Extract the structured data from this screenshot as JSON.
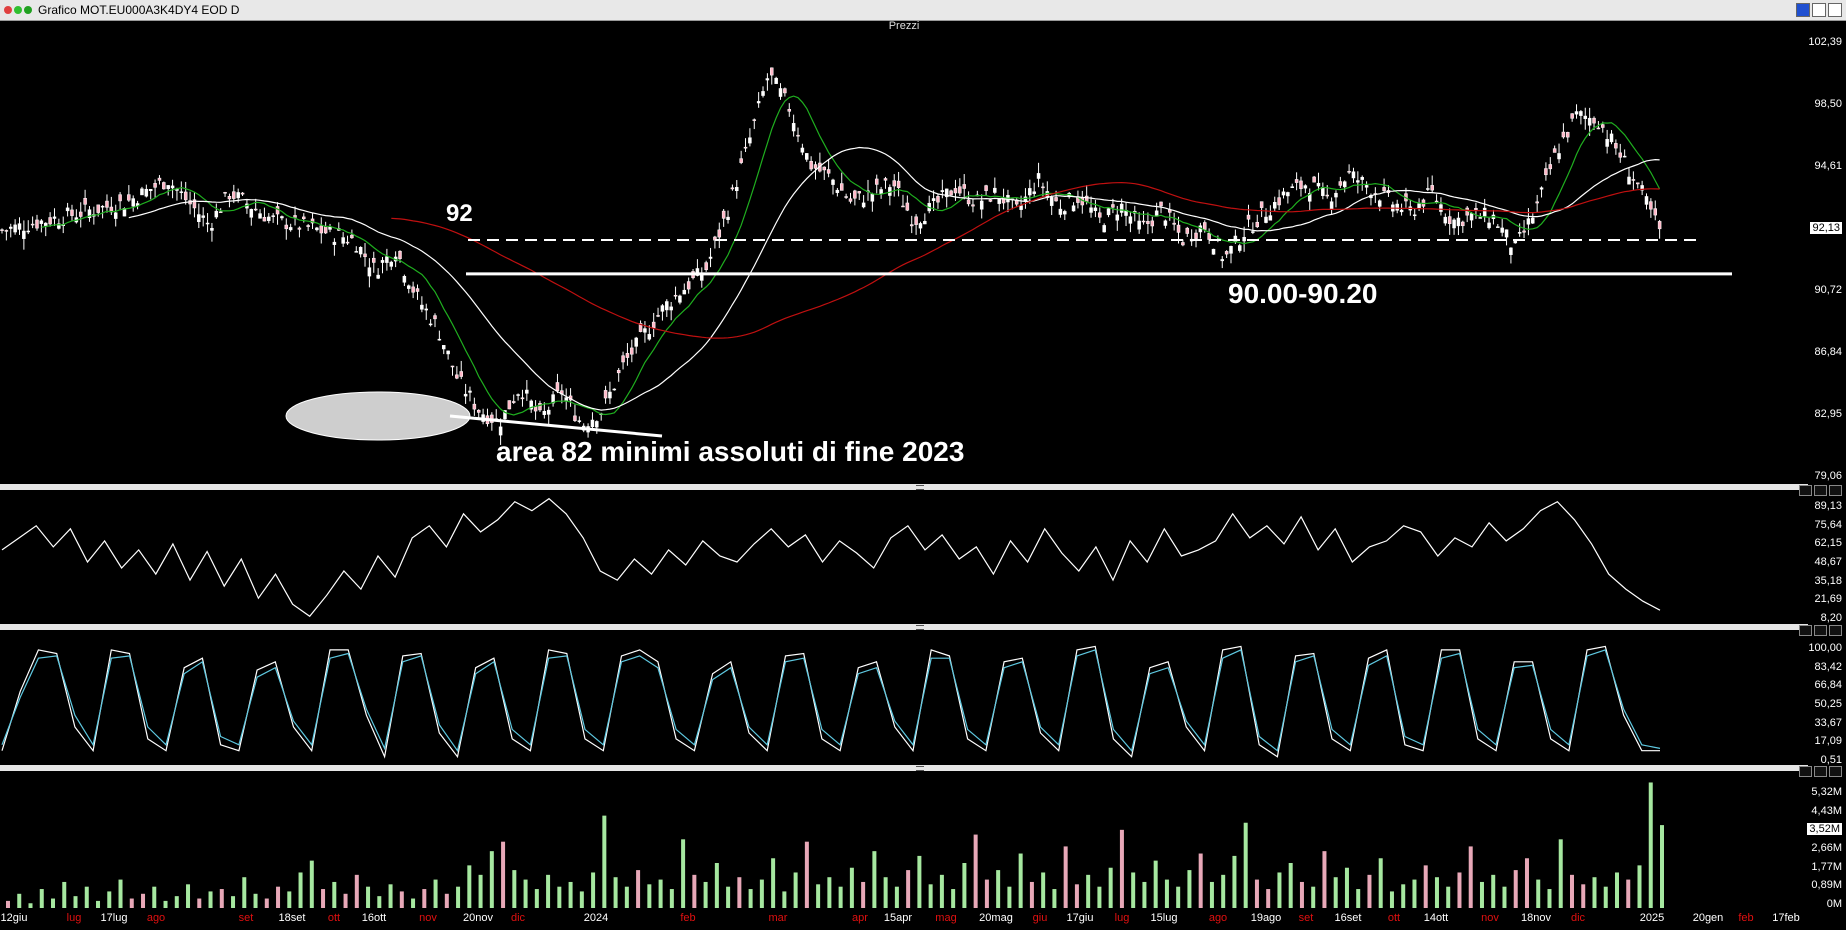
{
  "window": {
    "title": "Grafico MOT.EU000A3K4DY4 EOD D"
  },
  "panels": {
    "price_title": "Prezzi",
    "separator_glyph": "..."
  },
  "annotations": {
    "level_92": "92",
    "support_zone": "90.00-90.20",
    "lows_note": "area 82 minimi assoluti di fine 2023"
  },
  "colors": {
    "bull_volume": "#a6e8a0",
    "bear_volume": "#e8a8b8",
    "ma_fast": "#1fae1f",
    "ma_mid": "#ffffff",
    "ma_slow": "#c01010",
    "stoch_k": "#ffffff",
    "stoch_d": "#5ec8e0",
    "month_label": "#e01010",
    "date_label": "#ffffff"
  },
  "x_axis": [
    {
      "text": "12giu",
      "red": false
    },
    {
      "text": "lug",
      "red": true
    },
    {
      "text": "17lug",
      "red": false
    },
    {
      "text": "ago",
      "red": true
    },
    {
      "text": "set",
      "red": true
    },
    {
      "text": "18set",
      "red": false
    },
    {
      "text": "ott",
      "red": true
    },
    {
      "text": "16ott",
      "red": false
    },
    {
      "text": "nov",
      "red": true
    },
    {
      "text": "20nov",
      "red": false
    },
    {
      "text": "dic",
      "red": true
    },
    {
      "text": "2024",
      "red": false
    },
    {
      "text": "feb",
      "red": true
    },
    {
      "text": "mar",
      "red": true
    },
    {
      "text": "apr",
      "red": true
    },
    {
      "text": "15apr",
      "red": false
    },
    {
      "text": "mag",
      "red": true
    },
    {
      "text": "20mag",
      "red": false
    },
    {
      "text": "giu",
      "red": true
    },
    {
      "text": "17giu",
      "red": false
    },
    {
      "text": "lug",
      "red": true
    },
    {
      "text": "15lug",
      "red": false
    },
    {
      "text": "ago",
      "red": true
    },
    {
      "text": "19ago",
      "red": false
    },
    {
      "text": "set",
      "red": true
    },
    {
      "text": "16set",
      "red": false
    },
    {
      "text": "ott",
      "red": true
    },
    {
      "text": "14ott",
      "red": false
    },
    {
      "text": "nov",
      "red": true
    },
    {
      "text": "18nov",
      "red": false
    },
    {
      "text": "dic",
      "red": true
    },
    {
      "text": "2025",
      "red": false
    },
    {
      "text": "20gen",
      "red": false
    },
    {
      "text": "feb",
      "red": true
    },
    {
      "text": "17feb",
      "red": false
    }
  ],
  "chart_data": [
    {
      "type": "candlestick",
      "title": "Prezzi",
      "y_ticks": [
        "102,39",
        "98,50",
        "94,61",
        "92,13",
        "90,72",
        "86,84",
        "82,95",
        "79,06"
      ],
      "ylim": [
        79.06,
        102.39
      ],
      "last_price_label": "92,13",
      "horizontal_levels": [
        {
          "value": 92,
          "style": "dashed",
          "label": "92"
        },
        {
          "value": 90.2,
          "style": "solid",
          "label": "90.00-90.20"
        }
      ],
      "price_path": [
        [
          0,
          92.5
        ],
        [
          6,
          94.0
        ],
        [
          8,
          95.2
        ],
        [
          10,
          92.8
        ],
        [
          11,
          94.5
        ],
        [
          13,
          93.1
        ],
        [
          15,
          92.6
        ],
        [
          17,
          92.0
        ],
        [
          18,
          90.4
        ],
        [
          19,
          91.5
        ],
        [
          20,
          89.0
        ],
        [
          21,
          87.4
        ],
        [
          22,
          84.6
        ],
        [
          23,
          83.0
        ],
        [
          24,
          82.3
        ],
        [
          25,
          84.2
        ],
        [
          26,
          82.5
        ],
        [
          27,
          84.0
        ],
        [
          28,
          82.2
        ],
        [
          29,
          83.0
        ],
        [
          30,
          85.4
        ],
        [
          31,
          87.0
        ],
        [
          32,
          88.5
        ],
        [
          33,
          89.5
        ],
        [
          34,
          90.5
        ],
        [
          35,
          93.5
        ],
        [
          36,
          97.0
        ],
        [
          37,
          100.8
        ],
        [
          38,
          99.0
        ],
        [
          39,
          96.0
        ],
        [
          40,
          95.3
        ],
        [
          41,
          94.0
        ],
        [
          42,
          94.5
        ],
        [
          43,
          95.0
        ],
        [
          44,
          93.0
        ],
        [
          45,
          93.8
        ],
        [
          46,
          94.8
        ],
        [
          47,
          94.0
        ],
        [
          48,
          94.5
        ],
        [
          49,
          93.5
        ],
        [
          50,
          95.2
        ],
        [
          51,
          93.8
        ],
        [
          52,
          94.3
        ],
        [
          53,
          93.0
        ],
        [
          54,
          93.8
        ],
        [
          55,
          92.6
        ],
        [
          56,
          93.6
        ],
        [
          57,
          92.0
        ],
        [
          58,
          92.8
        ],
        [
          59,
          91.0
        ],
        [
          60,
          92.5
        ],
        [
          61,
          93.5
        ],
        [
          62,
          94.5
        ],
        [
          63,
          95.0
        ],
        [
          64,
          94.2
        ],
        [
          65,
          95.5
        ],
        [
          66,
          94.8
        ],
        [
          67,
          94.0
        ],
        [
          68,
          93.5
        ],
        [
          69,
          94.5
        ],
        [
          70,
          93.0
        ],
        [
          71,
          93.3
        ],
        [
          72,
          93.2
        ],
        [
          73,
          91.5
        ],
        [
          74,
          93.5
        ],
        [
          75,
          96.6
        ],
        [
          76,
          98.6
        ],
        [
          77,
          98.4
        ],
        [
          78,
          96.7
        ],
        [
          79,
          94.8
        ],
        [
          80,
          92.5
        ]
      ]
    },
    {
      "type": "line",
      "title": "",
      "y_ticks": [
        "89,13",
        "75,64",
        "62,15",
        "48,67",
        "35,18",
        "21,69",
        "8,20"
      ],
      "ylim": [
        8.2,
        89.13
      ],
      "series": [
        {
          "name": "",
          "values": [
            56,
            64,
            72,
            58,
            70,
            48,
            62,
            44,
            56,
            40,
            60,
            36,
            55,
            32,
            50,
            24,
            40,
            20,
            12,
            26,
            42,
            30,
            52,
            38,
            64,
            72,
            58,
            80,
            68,
            76,
            88,
            82,
            90,
            80,
            64,
            42,
            36,
            50,
            40,
            56,
            46,
            62,
            52,
            48,
            60,
            70,
            58,
            66,
            48,
            62,
            54,
            44,
            64,
            72,
            56,
            66,
            50,
            58,
            40,
            62,
            48,
            70,
            54,
            42,
            58,
            36,
            62,
            48,
            70,
            52,
            56,
            62,
            80,
            64,
            72,
            60,
            78,
            56,
            70,
            48,
            58,
            62,
            72,
            68,
            52,
            64,
            58,
            74,
            62,
            70,
            82,
            88,
            76,
            60,
            40,
            30,
            22,
            16
          ]
        }
      ]
    },
    {
      "type": "line",
      "title": "",
      "y_ticks": [
        "100,00",
        "83,42",
        "66,84",
        "50,25",
        "33,67",
        "17,09",
        "0,51"
      ],
      "ylim": [
        0.51,
        100
      ],
      "series": [
        {
          "name": "",
          "values": [
            10,
            60,
            95,
            92,
            30,
            10,
            95,
            92,
            20,
            10,
            80,
            88,
            15,
            10,
            78,
            85,
            30,
            10,
            95,
            95,
            40,
            5,
            90,
            92,
            25,
            5,
            80,
            88,
            20,
            10,
            95,
            92,
            20,
            10,
            90,
            95,
            85,
            20,
            10,
            75,
            85,
            25,
            10,
            90,
            92,
            20,
            10,
            80,
            85,
            30,
            10,
            95,
            90,
            20,
            10,
            85,
            88,
            25,
            10,
            95,
            98,
            20,
            5,
            80,
            85,
            30,
            10,
            95,
            98,
            15,
            5,
            90,
            92,
            20,
            10,
            88,
            95,
            15,
            10,
            95,
            95,
            20,
            10,
            85,
            85,
            20,
            10,
            95,
            98,
            40,
            10,
            10
          ]
        },
        {
          "name": "",
          "values": [
            15,
            55,
            88,
            90,
            40,
            15,
            88,
            90,
            30,
            15,
            75,
            85,
            22,
            15,
            72,
            80,
            35,
            15,
            88,
            92,
            45,
            12,
            85,
            90,
            32,
            10,
            75,
            85,
            28,
            15,
            88,
            90,
            28,
            15,
            85,
            90,
            80,
            28,
            15,
            70,
            80,
            30,
            15,
            85,
            88,
            28,
            15,
            75,
            80,
            35,
            15,
            88,
            88,
            28,
            15,
            80,
            85,
            30,
            15,
            90,
            95,
            28,
            10,
            75,
            80,
            35,
            15,
            88,
            95,
            22,
            10,
            85,
            90,
            28,
            15,
            82,
            90,
            22,
            15,
            88,
            92,
            28,
            15,
            80,
            82,
            28,
            15,
            90,
            95,
            45,
            15,
            12
          ]
        }
      ]
    },
    {
      "type": "bar",
      "title": "",
      "y_ticks": [
        "5,32M",
        "4,43M",
        "3,52M",
        "2,66M",
        "1,77M",
        "0,89M",
        "0M"
      ],
      "ylim": [
        0,
        5.32
      ],
      "last_value_label": "3,52M",
      "values": [
        0.3,
        0.6,
        0.2,
        0.8,
        0.4,
        1.1,
        0.5,
        0.9,
        0.3,
        0.7,
        1.2,
        0.4,
        0.6,
        0.9,
        0.3,
        0.5,
        1.0,
        0.4,
        0.7,
        0.8,
        0.5,
        1.3,
        0.6,
        0.4,
        0.9,
        0.7,
        1.5,
        2.0,
        0.8,
        1.1,
        0.6,
        1.4,
        0.9,
        0.5,
        1.0,
        0.7,
        0.4,
        0.8,
        1.2,
        0.6,
        0.9,
        1.8,
        1.4,
        2.4,
        2.8,
        1.6,
        1.2,
        0.8,
        1.4,
        0.9,
        1.1,
        0.7,
        1.5,
        3.9,
        1.3,
        0.9,
        1.6,
        1.0,
        1.2,
        0.8,
        2.9,
        1.4,
        1.1,
        1.9,
        0.9,
        1.3,
        0.8,
        1.2,
        2.1,
        0.7,
        1.5,
        2.8,
        1.0,
        1.3,
        0.9,
        1.7,
        1.1,
        2.4,
        1.3,
        0.9,
        1.6,
        2.2,
        1.0,
        1.4,
        0.8,
        1.9,
        3.1,
        1.2,
        1.6,
        0.9,
        2.3,
        1.1,
        1.5,
        0.8,
        2.6,
        1.0,
        1.4,
        0.9,
        1.7,
        3.3,
        1.5,
        1.1,
        2.0,
        1.2,
        0.9,
        1.6,
        2.3,
        1.1,
        1.4,
        2.2,
        3.6,
        1.2,
        0.8,
        1.5,
        1.9,
        1.1,
        0.9,
        2.4,
        1.3,
        1.7,
        0.8,
        1.4,
        2.1,
        0.7,
        1.0,
        1.2,
        1.8,
        1.3,
        0.9,
        1.5,
        2.6,
        1.1,
        1.4,
        0.9,
        1.6,
        2.1,
        1.2,
        0.8,
        2.9,
        1.4,
        1.0,
        1.3,
        0.9,
        1.5,
        1.2,
        1.8,
        5.3,
        3.5
      ]
    }
  ]
}
